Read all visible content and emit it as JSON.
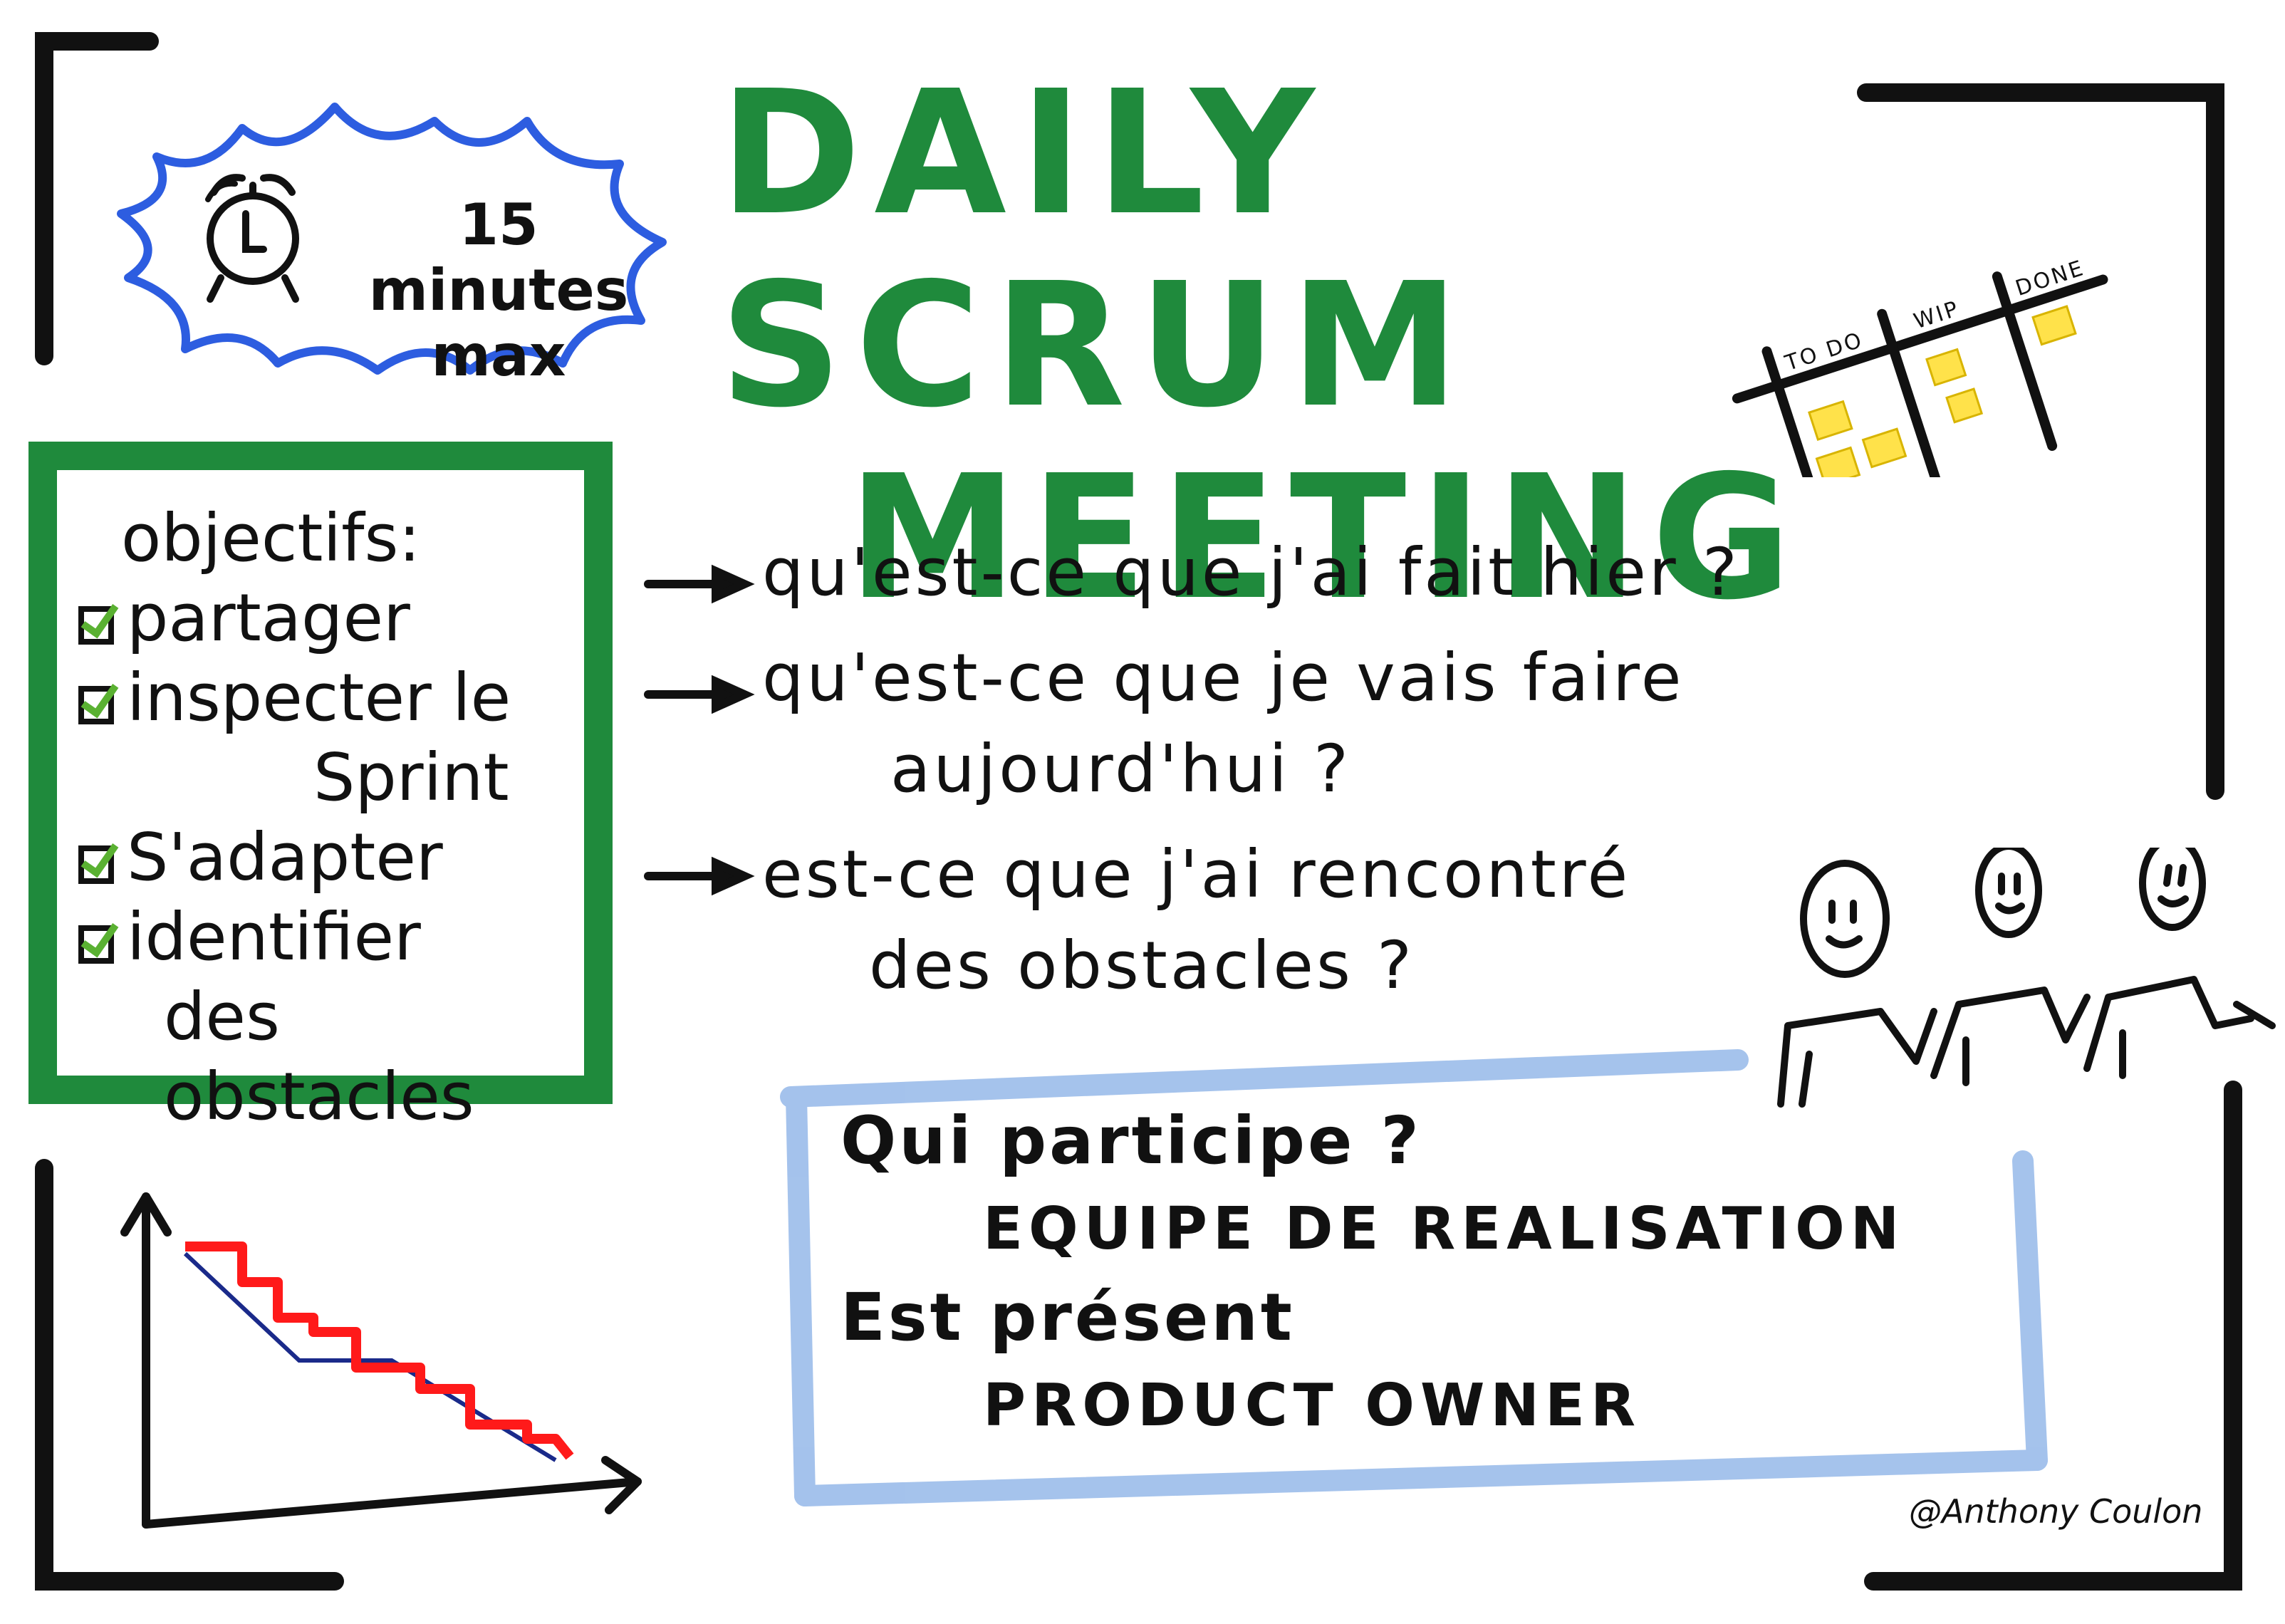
{
  "header": {
    "timer_line1": "15 minutes",
    "timer_line2": "max",
    "title_line1": "DAILY SCRUM",
    "title_line2": "MEETING"
  },
  "board": {
    "columns": [
      "TO DO",
      "WIP",
      "DONE"
    ]
  },
  "objectives": {
    "heading": "objectifs:",
    "items": [
      "partager",
      "inspecter le",
      "Sprint",
      "S'adapter",
      "identifier",
      "des obstacles"
    ]
  },
  "questions": [
    "qu'est-ce que j'ai fait hier ?",
    "qu'est-ce que je vais faire",
    "aujourd'hui ?",
    "est-ce que j'ai rencontré",
    "des obstacles ?"
  ],
  "participants": {
    "q1": "Qui participe ?",
    "a1": "EQUIPE DE REALISATION",
    "q2": "Est présent",
    "a2": "PRODUCT OWNER"
  },
  "credit": "@Anthony Coulon",
  "colors": {
    "green": "#1f8a3c",
    "blue": "#2d5de0",
    "light_blue": "#9bbcea",
    "red": "#ff1a1a",
    "yellow": "#ffe24a",
    "ink": "#111111"
  },
  "icons": [
    "alarm-clock-icon",
    "kanban-board-icon",
    "team-people-icon",
    "burndown-chart-icon"
  ]
}
